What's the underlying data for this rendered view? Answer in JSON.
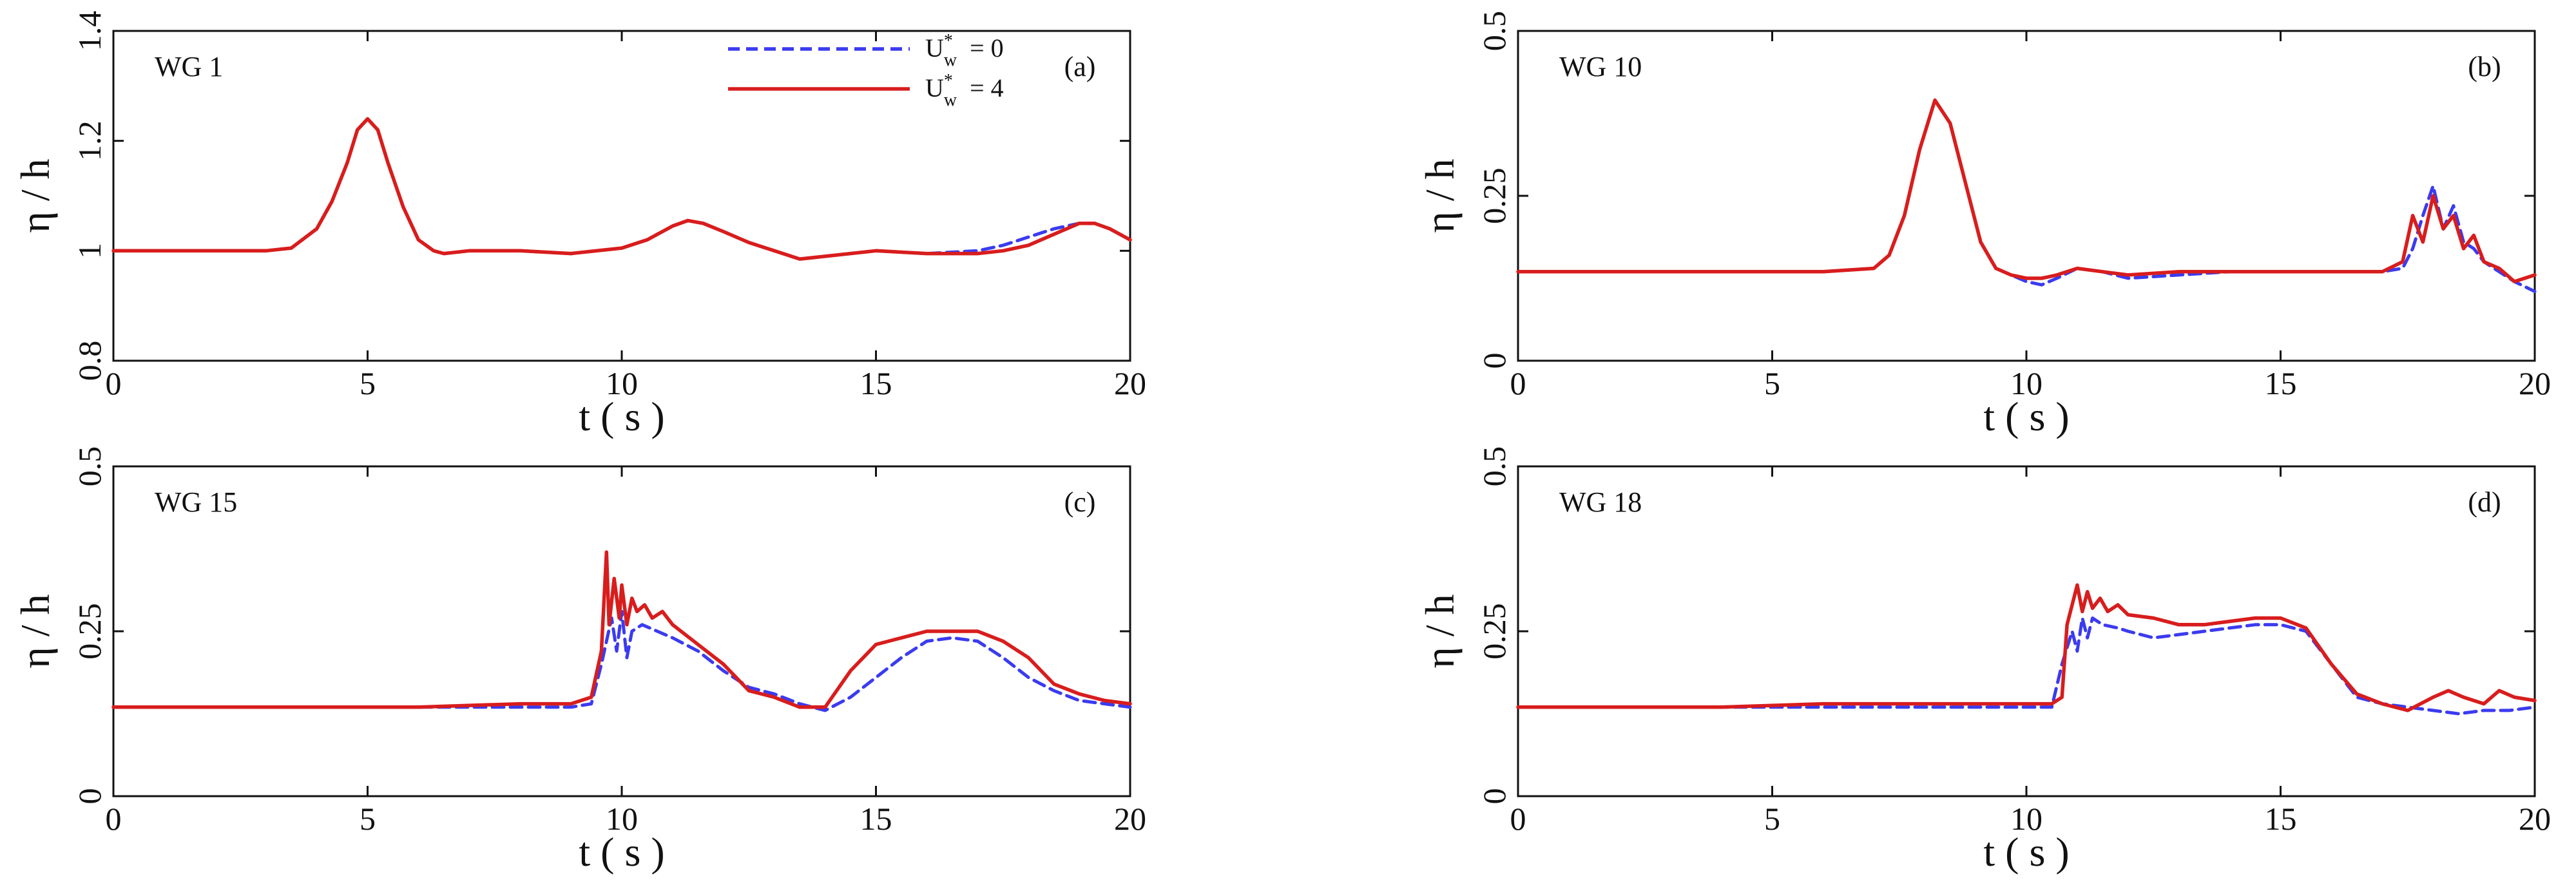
{
  "legend": {
    "entries": [
      {
        "label": "U",
        "sup": "*",
        "sub": "w",
        "equals": "= 0",
        "style": "dashed",
        "color": "#3b3bf0"
      },
      {
        "label": "U",
        "sup": "*",
        "sub": "w",
        "equals": "= 4",
        "style": "solid",
        "color": "#d81d1d"
      }
    ]
  },
  "colors": {
    "series_dashed": "#3b3bf0",
    "series_solid": "#d81d1d",
    "axis": "#111111"
  },
  "chart_data": [
    {
      "type": "line",
      "panel": "(a)",
      "gauge": "WG 1",
      "title": "",
      "xlabel": "t ( s )",
      "ylabel": "η / h",
      "xlim": [
        0,
        20
      ],
      "ylim": [
        0.8,
        1.4
      ],
      "xticks": [
        0,
        5,
        10,
        15,
        20
      ],
      "xtick_labels": [
        "0",
        "5",
        "10",
        "15",
        "20"
      ],
      "yticks": [
        0.8,
        1.0,
        1.2,
        1.4
      ],
      "ytick_labels": [
        "0.8",
        "1",
        "1.2",
        "1.4"
      ],
      "grid": false,
      "legend_position": "top-center",
      "series": [
        {
          "name": "U*w = 0",
          "style": "dashed",
          "x": [
            0,
            1,
            2,
            3,
            3.5,
            4,
            4.3,
            4.6,
            4.8,
            5.0,
            5.2,
            5.4,
            5.7,
            6.0,
            6.3,
            6.5,
            7,
            8,
            9,
            10,
            10.5,
            11,
            11.3,
            11.6,
            12,
            12.5,
            13,
            13.5,
            14,
            15,
            16,
            17,
            17.5,
            18,
            18.5,
            19,
            19.3,
            19.6,
            20
          ],
          "y": [
            1.0,
            1.0,
            1.0,
            1.0,
            1.005,
            1.04,
            1.09,
            1.16,
            1.22,
            1.24,
            1.22,
            1.16,
            1.08,
            1.02,
            1.0,
            0.995,
            1.0,
            1.0,
            0.995,
            1.005,
            1.02,
            1.045,
            1.055,
            1.05,
            1.035,
            1.015,
            1.0,
            0.985,
            0.99,
            1.0,
            0.995,
            1.0,
            1.01,
            1.025,
            1.04,
            1.05,
            1.05,
            1.04,
            1.02
          ]
        },
        {
          "name": "U*w = 4",
          "style": "solid",
          "x": [
            0,
            1,
            2,
            3,
            3.5,
            4,
            4.3,
            4.6,
            4.8,
            5.0,
            5.2,
            5.4,
            5.7,
            6.0,
            6.3,
            6.5,
            7,
            8,
            9,
            10,
            10.5,
            11,
            11.3,
            11.6,
            12,
            12.5,
            13,
            13.5,
            14,
            15,
            16,
            17,
            17.5,
            18,
            18.5,
            19,
            19.3,
            19.6,
            20
          ],
          "y": [
            1.0,
            1.0,
            1.0,
            1.0,
            1.005,
            1.04,
            1.09,
            1.16,
            1.22,
            1.24,
            1.22,
            1.16,
            1.08,
            1.02,
            1.0,
            0.995,
            1.0,
            1.0,
            0.995,
            1.005,
            1.02,
            1.045,
            1.055,
            1.05,
            1.035,
            1.015,
            1.0,
            0.985,
            0.99,
            1.0,
            0.995,
            0.995,
            1.0,
            1.01,
            1.03,
            1.05,
            1.05,
            1.04,
            1.02
          ]
        }
      ]
    },
    {
      "type": "line",
      "panel": "(b)",
      "gauge": "WG 10",
      "title": "",
      "xlabel": "t ( s )",
      "ylabel": "η / h",
      "xlim": [
        0,
        20
      ],
      "ylim": [
        0,
        0.5
      ],
      "xticks": [
        0,
        5,
        10,
        15,
        20
      ],
      "xtick_labels": [
        "0",
        "5",
        "10",
        "15",
        "20"
      ],
      "yticks": [
        0,
        0.25,
        0.5
      ],
      "ytick_labels": [
        "0",
        "0.25",
        "0.5"
      ],
      "grid": false,
      "series": [
        {
          "name": "U*w = 0",
          "style": "dashed",
          "x": [
            0,
            2,
            4,
            6,
            7,
            7.3,
            7.6,
            7.9,
            8.2,
            8.5,
            8.8,
            9.1,
            9.4,
            9.7,
            10,
            10.3,
            10.6,
            11,
            11.5,
            12,
            13,
            14,
            15,
            16,
            17,
            17.4,
            17.6,
            17.8,
            18.0,
            18.2,
            18.4,
            18.6,
            18.8,
            19.0,
            19.3,
            19.6,
            20
          ],
          "y": [
            0.135,
            0.135,
            0.135,
            0.135,
            0.14,
            0.16,
            0.22,
            0.32,
            0.395,
            0.36,
            0.27,
            0.18,
            0.14,
            0.13,
            0.12,
            0.115,
            0.125,
            0.14,
            0.135,
            0.125,
            0.13,
            0.135,
            0.135,
            0.135,
            0.135,
            0.14,
            0.17,
            0.22,
            0.265,
            0.2,
            0.235,
            0.18,
            0.17,
            0.15,
            0.135,
            0.12,
            0.105
          ]
        },
        {
          "name": "U*w = 4",
          "style": "solid",
          "x": [
            0,
            2,
            4,
            6,
            7,
            7.3,
            7.6,
            7.9,
            8.2,
            8.5,
            8.8,
            9.1,
            9.4,
            9.7,
            10,
            10.3,
            10.6,
            11,
            11.5,
            12,
            13,
            14,
            15,
            16,
            17,
            17.4,
            17.6,
            17.8,
            18.0,
            18.2,
            18.4,
            18.6,
            18.8,
            19.0,
            19.3,
            19.6,
            20
          ],
          "y": [
            0.135,
            0.135,
            0.135,
            0.135,
            0.14,
            0.16,
            0.22,
            0.32,
            0.395,
            0.36,
            0.27,
            0.18,
            0.14,
            0.13,
            0.125,
            0.125,
            0.13,
            0.14,
            0.135,
            0.13,
            0.135,
            0.135,
            0.135,
            0.135,
            0.135,
            0.15,
            0.22,
            0.18,
            0.25,
            0.2,
            0.22,
            0.17,
            0.19,
            0.15,
            0.14,
            0.12,
            0.13
          ]
        }
      ]
    },
    {
      "type": "line",
      "panel": "(c)",
      "gauge": "WG 15",
      "title": "",
      "xlabel": "t ( s )",
      "ylabel": "η / h",
      "xlim": [
        0,
        20
      ],
      "ylim": [
        0,
        0.5
      ],
      "xticks": [
        0,
        5,
        10,
        15,
        20
      ],
      "xtick_labels": [
        "0",
        "5",
        "10",
        "15",
        "20"
      ],
      "yticks": [
        0,
        0.25,
        0.5
      ],
      "ytick_labels": [
        "0",
        "0.25",
        "0.5"
      ],
      "grid": false,
      "series": [
        {
          "name": "U*w = 0",
          "style": "dashed",
          "x": [
            0,
            2,
            4,
            6,
            8,
            9,
            9.4,
            9.6,
            9.8,
            9.9,
            10.0,
            10.1,
            10.2,
            10.4,
            10.7,
            11,
            11.5,
            12,
            12.5,
            13,
            13.5,
            14,
            14.5,
            15,
            15.5,
            16,
            16.5,
            17,
            17.5,
            18,
            18.5,
            19,
            19.5,
            20
          ],
          "y": [
            0.135,
            0.135,
            0.135,
            0.135,
            0.135,
            0.135,
            0.14,
            0.2,
            0.27,
            0.22,
            0.28,
            0.21,
            0.25,
            0.26,
            0.25,
            0.24,
            0.22,
            0.19,
            0.165,
            0.155,
            0.14,
            0.13,
            0.15,
            0.18,
            0.21,
            0.235,
            0.24,
            0.235,
            0.21,
            0.18,
            0.16,
            0.145,
            0.14,
            0.135
          ]
        },
        {
          "name": "U*w = 4",
          "style": "solid",
          "x": [
            0,
            2,
            4,
            6,
            8,
            9,
            9.4,
            9.6,
            9.7,
            9.75,
            9.85,
            9.95,
            10.0,
            10.1,
            10.2,
            10.3,
            10.45,
            10.6,
            10.8,
            11,
            11.5,
            12,
            12.5,
            13,
            13.5,
            14,
            14.5,
            15,
            15.5,
            16,
            16.5,
            17,
            17.5,
            18,
            18.5,
            19,
            19.5,
            20
          ],
          "y": [
            0.135,
            0.135,
            0.135,
            0.135,
            0.14,
            0.14,
            0.15,
            0.22,
            0.37,
            0.26,
            0.33,
            0.27,
            0.32,
            0.26,
            0.3,
            0.28,
            0.29,
            0.27,
            0.28,
            0.26,
            0.23,
            0.2,
            0.16,
            0.15,
            0.135,
            0.135,
            0.19,
            0.23,
            0.24,
            0.25,
            0.25,
            0.25,
            0.235,
            0.21,
            0.17,
            0.155,
            0.145,
            0.14
          ]
        }
      ]
    },
    {
      "type": "line",
      "panel": "(d)",
      "gauge": "WG 18",
      "title": "",
      "xlabel": "t ( s )",
      "ylabel": "η / h",
      "xlim": [
        0,
        20
      ],
      "ylim": [
        0,
        0.5
      ],
      "xticks": [
        0,
        5,
        10,
        15,
        20
      ],
      "xtick_labels": [
        "0",
        "5",
        "10",
        "15",
        "20"
      ],
      "yticks": [
        0,
        0.25,
        0.5
      ],
      "ytick_labels": [
        "0",
        "0.25",
        "0.5"
      ],
      "grid": false,
      "series": [
        {
          "name": "U*w = 0",
          "style": "dashed",
          "x": [
            0,
            2,
            4,
            6,
            8,
            10,
            10.5,
            10.7,
            10.9,
            11.0,
            11.1,
            11.2,
            11.3,
            11.5,
            11.8,
            12,
            12.5,
            13,
            13.5,
            14,
            14.5,
            15,
            15.5,
            16,
            16.5,
            17,
            17.5,
            18,
            18.5,
            19,
            19.5,
            20
          ],
          "y": [
            0.135,
            0.135,
            0.135,
            0.135,
            0.135,
            0.135,
            0.135,
            0.2,
            0.25,
            0.22,
            0.27,
            0.24,
            0.27,
            0.26,
            0.255,
            0.25,
            0.24,
            0.245,
            0.25,
            0.255,
            0.26,
            0.26,
            0.25,
            0.2,
            0.15,
            0.14,
            0.135,
            0.13,
            0.125,
            0.13,
            0.13,
            0.135
          ]
        },
        {
          "name": "U*w = 4",
          "style": "solid",
          "x": [
            0,
            2,
            4,
            6,
            8,
            10,
            10.5,
            10.7,
            10.8,
            10.9,
            11.0,
            11.1,
            11.2,
            11.3,
            11.45,
            11.6,
            11.8,
            12,
            12.5,
            13,
            13.5,
            14,
            14.5,
            15,
            15.5,
            16,
            16.5,
            17,
            17.5,
            18,
            18.3,
            18.6,
            19,
            19.3,
            19.6,
            20
          ],
          "y": [
            0.135,
            0.135,
            0.135,
            0.14,
            0.14,
            0.14,
            0.14,
            0.15,
            0.26,
            0.29,
            0.32,
            0.28,
            0.31,
            0.285,
            0.3,
            0.28,
            0.29,
            0.275,
            0.27,
            0.26,
            0.26,
            0.265,
            0.27,
            0.27,
            0.255,
            0.2,
            0.155,
            0.14,
            0.13,
            0.15,
            0.16,
            0.15,
            0.14,
            0.16,
            0.15,
            0.145
          ]
        }
      ]
    }
  ]
}
